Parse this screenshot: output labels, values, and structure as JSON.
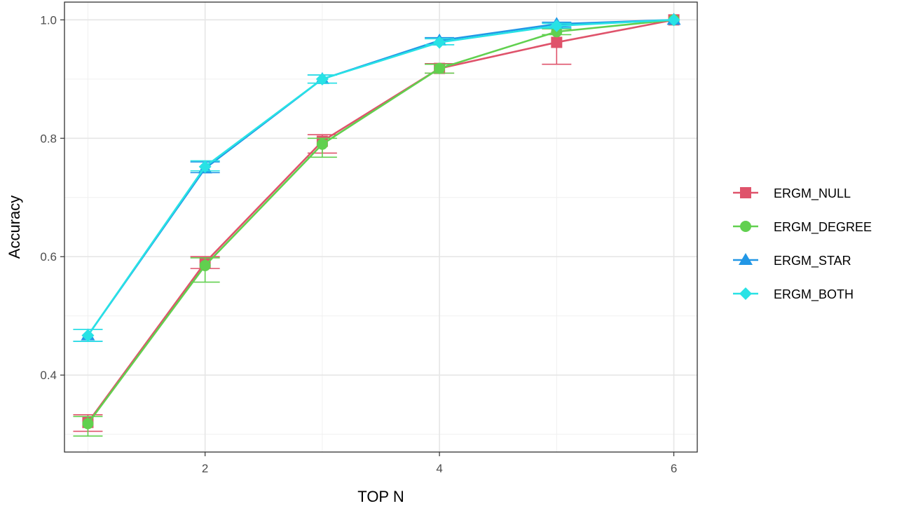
{
  "chart_data": {
    "type": "line",
    "title": "",
    "xlabel": "TOP N",
    "ylabel": "Accuracy",
    "xlim": [
      0.8,
      6.2
    ],
    "ylim": [
      0.27,
      1.03
    ],
    "x_ticks": [
      2,
      4,
      6
    ],
    "y_ticks": [
      0.4,
      0.6,
      0.8,
      1.0
    ],
    "x_tick_labels": [
      "2",
      "4",
      "6"
    ],
    "y_tick_labels": [
      "0.4",
      "0.6",
      "0.8",
      "1.0"
    ],
    "grid": true,
    "legend_position": "right",
    "x": [
      1,
      2,
      3,
      4,
      5,
      6
    ],
    "series": [
      {
        "name": "ERGM_NULL",
        "color": "#DF536B",
        "marker": "square",
        "values": [
          0.32,
          0.59,
          0.795,
          0.918,
          0.962,
          1.0
        ],
        "err_low": [
          0.305,
          0.58,
          0.775,
          0.91,
          0.925,
          1.0
        ],
        "err_high": [
          0.333,
          0.6,
          0.806,
          0.926,
          0.985,
          1.0
        ]
      },
      {
        "name": "ERGM_DEGREE",
        "color": "#61D04F",
        "marker": "circle",
        "values": [
          0.318,
          0.585,
          0.79,
          0.918,
          0.98,
          1.0
        ],
        "err_low": [
          0.297,
          0.557,
          0.768,
          0.91,
          0.975,
          1.0
        ],
        "err_high": [
          0.33,
          0.598,
          0.8,
          0.925,
          0.985,
          1.0
        ]
      },
      {
        "name": "ERGM_STAR",
        "color": "#2297E6",
        "marker": "triangle",
        "values": [
          0.467,
          0.749,
          0.9,
          0.965,
          0.993,
          1.0
        ],
        "err_low": [
          0.457,
          0.742,
          0.893,
          0.958,
          0.988,
          1.0
        ],
        "err_high": [
          0.477,
          0.76,
          0.907,
          0.97,
          0.996,
          1.0
        ]
      },
      {
        "name": "ERGM_BOTH",
        "color": "#28E2E5",
        "marker": "diamond",
        "values": [
          0.467,
          0.752,
          0.9,
          0.962,
          0.99,
          1.0
        ],
        "err_low": [
          0.457,
          0.745,
          0.893,
          0.958,
          0.986,
          1.0
        ],
        "err_high": [
          0.477,
          0.762,
          0.907,
          0.968,
          0.994,
          1.0
        ]
      }
    ]
  }
}
